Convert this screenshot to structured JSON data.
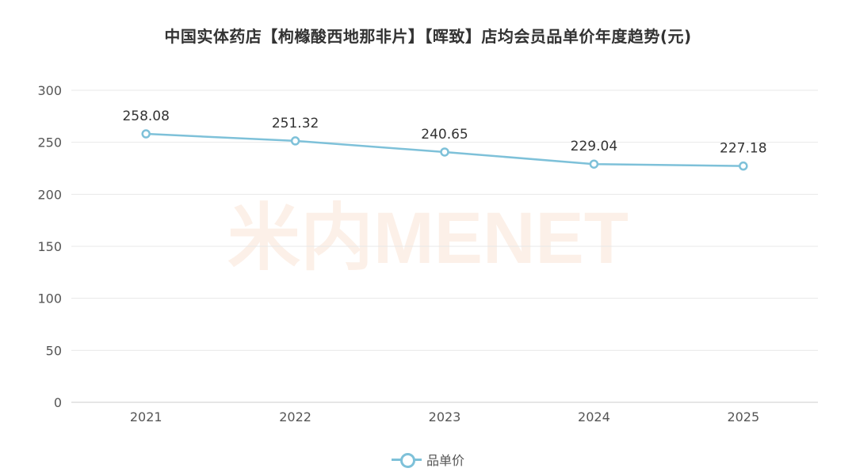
{
  "chart_data": {
    "type": "line",
    "title": "中国实体药店【枸橼酸西地那非片】【晖致】店均会员品单价年度趋势(元)",
    "categories": [
      "2021",
      "2022",
      "2023",
      "2024",
      "2025"
    ],
    "series": [
      {
        "name": "品单价",
        "values": [
          258.08,
          251.32,
          240.65,
          229.04,
          227.18
        ]
      }
    ],
    "data_labels": [
      "258.08",
      "251.32",
      "240.65",
      "229.04",
      "227.18"
    ],
    "yticks": [
      "0",
      "50",
      "100",
      "150",
      "200",
      "250",
      "300"
    ],
    "ylim": [
      0,
      300
    ],
    "grid": true,
    "legend": "bottom-center",
    "line_color": "#7ec1d9",
    "watermark": "米内MENET"
  }
}
